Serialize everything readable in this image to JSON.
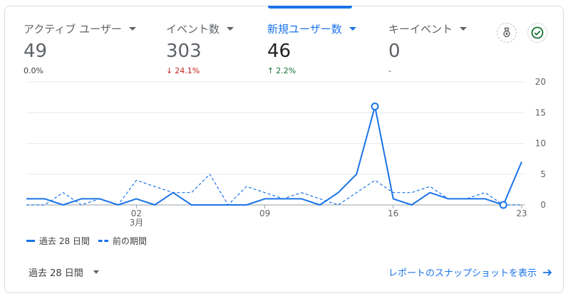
{
  "metrics": [
    {
      "label": "アクティブ ユーザー",
      "value": "49",
      "change": "0.0%",
      "direction": "none"
    },
    {
      "label": "イベント数",
      "value": "303",
      "change": "24.1%",
      "direction": "down"
    },
    {
      "label": "新規ユーザー数",
      "value": "46",
      "change": "2.2%",
      "direction": "up"
    },
    {
      "label": "キーイベント",
      "value": "0",
      "change": "-",
      "direction": "none"
    }
  ],
  "icons": {
    "badge": "award-badge-icon",
    "check": "check-circle-icon"
  },
  "legend": {
    "current": "過去 28 日間",
    "previous": "前の期間"
  },
  "footer": {
    "date_range": "過去 28 日間",
    "link": "レポートのスナップショットを表示"
  },
  "colors": {
    "accent": "#1a73e8",
    "down": "#c5221f",
    "up": "#137333"
  },
  "chart_data": {
    "type": "line",
    "x_ticks": [
      {
        "index": 6,
        "label": "02",
        "sublabel": "3月"
      },
      {
        "index": 13,
        "label": "09",
        "sublabel": ""
      },
      {
        "index": 20,
        "label": "16",
        "sublabel": ""
      },
      {
        "index": 27,
        "label": "23",
        "sublabel": ""
      }
    ],
    "y_ticks": [
      0,
      5,
      10,
      15,
      20
    ],
    "ylim": [
      0,
      20
    ],
    "grid": true,
    "series": [
      {
        "name": "過去 28 日間",
        "style": "solid",
        "values": [
          1,
          1,
          0,
          1,
          1,
          0,
          1,
          0,
          2,
          0,
          0,
          0,
          0,
          1,
          1,
          1,
          0,
          2,
          5,
          16,
          1,
          0,
          2,
          1,
          1,
          1,
          0,
          7
        ],
        "markers": [
          19,
          26
        ]
      },
      {
        "name": "前の期間",
        "style": "dashed",
        "values": [
          0,
          0,
          2,
          0,
          1,
          0,
          4,
          3,
          2,
          2,
          5,
          0,
          3,
          2,
          1,
          2,
          1,
          0,
          2,
          4,
          2,
          2,
          3,
          1,
          1,
          2,
          0,
          0
        ],
        "markers": []
      }
    ]
  }
}
